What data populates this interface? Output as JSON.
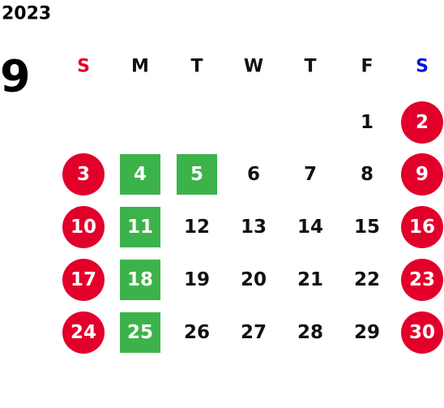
{
  "year": "2023",
  "month": "9",
  "weekdays": [
    "S",
    "M",
    "T",
    "W",
    "T",
    "F",
    "S"
  ],
  "weeks": [
    [
      null,
      null,
      null,
      null,
      null,
      {
        "day": "1"
      },
      {
        "day": "2"
      }
    ],
    [
      {
        "day": "3"
      },
      {
        "day": "4",
        "highlight": true
      },
      {
        "day": "5",
        "highlight": true
      },
      {
        "day": "6"
      },
      {
        "day": "7"
      },
      {
        "day": "8"
      },
      {
        "day": "9"
      }
    ],
    [
      {
        "day": "10"
      },
      {
        "day": "11",
        "highlight": true
      },
      {
        "day": "12"
      },
      {
        "day": "13"
      },
      {
        "day": "14"
      },
      {
        "day": "15"
      },
      {
        "day": "16"
      }
    ],
    [
      {
        "day": "17"
      },
      {
        "day": "18",
        "highlight": true
      },
      {
        "day": "19"
      },
      {
        "day": "20"
      },
      {
        "day": "21"
      },
      {
        "day": "22"
      },
      {
        "day": "23"
      }
    ],
    [
      {
        "day": "24"
      },
      {
        "day": "25",
        "highlight": true
      },
      {
        "day": "26"
      },
      {
        "day": "27"
      },
      {
        "day": "28"
      },
      {
        "day": "29"
      },
      {
        "day": "30"
      }
    ]
  ]
}
